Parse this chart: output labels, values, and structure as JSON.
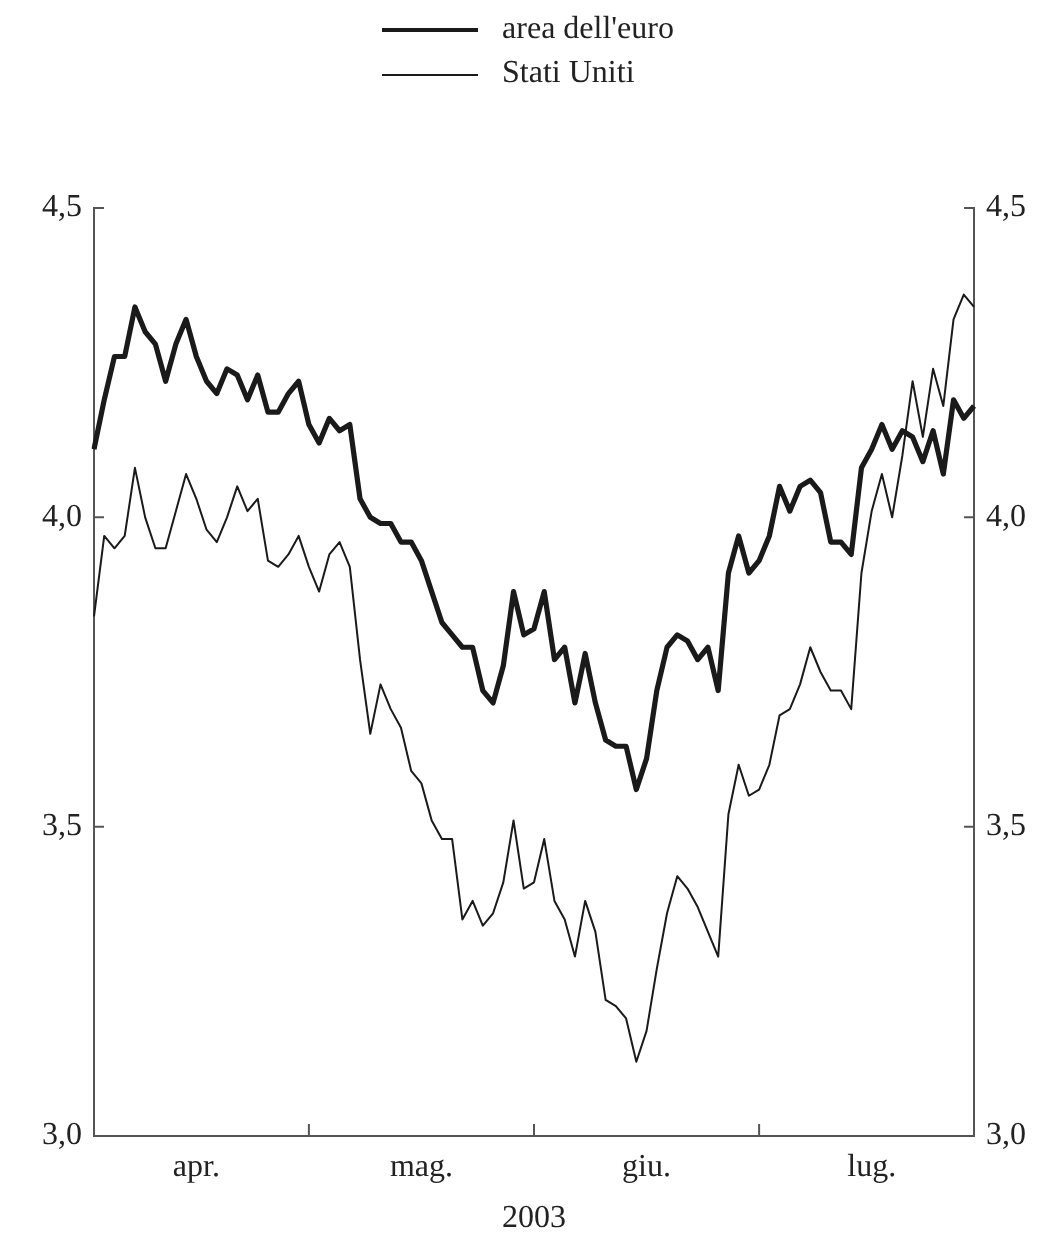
{
  "chart_data": {
    "type": "line",
    "xlabel": "2003",
    "legend": "top",
    "grid": false,
    "marker": "none",
    "line_style": "solid",
    "categories": [
      null,
      null,
      null,
      null,
      null,
      null,
      null,
      null,
      null,
      null,
      "apr.",
      null,
      null,
      null,
      null,
      null,
      null,
      null,
      null,
      null,
      null,
      null,
      null,
      null,
      null,
      null,
      null,
      null,
      null,
      null,
      null,
      null,
      "mag.",
      null,
      null,
      null,
      null,
      null,
      null,
      null,
      null,
      null,
      null,
      null,
      null,
      null,
      null,
      null,
      null,
      null,
      null,
      null,
      null,
      null,
      "giu.",
      null,
      null,
      null,
      null,
      null,
      null,
      null,
      null,
      null,
      null,
      null,
      null,
      null,
      null,
      null,
      null,
      null,
      null,
      null,
      null,
      null,
      "lug.",
      null,
      null,
      null,
      null,
      null,
      null,
      null,
      null,
      null,
      null
    ],
    "ylim": [
      3.0,
      4.5
    ],
    "yticks": [
      {
        "value": 3.0,
        "label": "3,0"
      },
      {
        "value": 3.5,
        "label": "3,5"
      },
      {
        "value": 4.0,
        "label": "4,0"
      },
      {
        "value": 4.5,
        "label": "4,5"
      }
    ],
    "y2lim": [
      3.0,
      4.5
    ],
    "y2ticks": [
      {
        "value": 3.0,
        "label": "3,0"
      },
      {
        "value": 3.5,
        "label": "3,5"
      },
      {
        "value": 4.0,
        "label": "4,0"
      },
      {
        "value": 4.5,
        "label": "4,5"
      }
    ],
    "series": [
      {
        "name": "area dell'euro",
        "color": "#1a1a1a",
        "values": [
          4.11,
          4.19,
          4.26,
          4.26,
          4.34,
          4.3,
          4.28,
          4.22,
          4.28,
          4.32,
          4.26,
          4.22,
          4.2,
          4.24,
          4.23,
          4.19,
          4.23,
          4.17,
          4.17,
          4.2,
          4.22,
          4.15,
          4.12,
          4.16,
          4.14,
          4.15,
          4.03,
          4.0,
          3.99,
          3.99,
          3.96,
          3.96,
          3.93,
          3.88,
          3.83,
          3.81,
          3.79,
          3.79,
          3.72,
          3.7,
          3.76,
          3.88,
          3.81,
          3.82,
          3.88,
          3.77,
          3.79,
          3.7,
          3.78,
          3.7,
          3.64,
          3.63,
          3.63,
          3.56,
          3.61,
          3.72,
          3.79,
          3.81,
          3.8,
          3.77,
          3.79,
          3.72,
          3.91,
          3.97,
          3.91,
          3.93,
          3.97,
          4.05,
          4.01,
          4.05,
          4.06,
          4.04,
          3.96,
          3.96,
          3.94,
          4.08,
          4.11,
          4.15,
          4.11,
          4.14,
          4.13,
          4.09,
          4.14,
          4.07,
          4.19,
          4.16,
          4.18
        ]
      },
      {
        "name": "Stati Uniti",
        "color": "#1a1a1a",
        "values": [
          3.84,
          3.97,
          3.95,
          3.97,
          4.08,
          4.0,
          3.95,
          3.95,
          4.01,
          4.07,
          4.03,
          3.98,
          3.96,
          4.0,
          4.05,
          4.01,
          4.03,
          3.93,
          3.92,
          3.94,
          3.97,
          3.92,
          3.88,
          3.94,
          3.96,
          3.92,
          3.77,
          3.65,
          3.73,
          3.69,
          3.66,
          3.59,
          3.57,
          3.51,
          3.48,
          3.48,
          3.35,
          3.38,
          3.34,
          3.36,
          3.41,
          3.51,
          3.4,
          3.41,
          3.48,
          3.38,
          3.35,
          3.29,
          3.38,
          3.33,
          3.22,
          3.21,
          3.19,
          3.12,
          3.17,
          3.27,
          3.36,
          3.42,
          3.4,
          3.37,
          3.33,
          3.29,
          3.52,
          3.6,
          3.55,
          3.56,
          3.6,
          3.68,
          3.69,
          3.73,
          3.79,
          3.75,
          3.72,
          3.72,
          3.69,
          3.91,
          4.01,
          4.07,
          4.0,
          4.1,
          4.22,
          4.13,
          4.24,
          4.18,
          4.32,
          4.36,
          4.34
        ]
      }
    ]
  }
}
